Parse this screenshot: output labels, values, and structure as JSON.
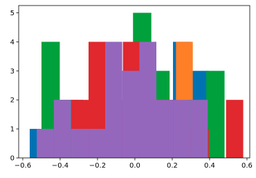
{
  "chart_data": {
    "type": "histogram",
    "xlim": [
      -0.622,
      0.615
    ],
    "xticks": [
      {
        "value": -0.6,
        "label": "−0.6"
      },
      {
        "value": -0.4,
        "label": "−0.4"
      },
      {
        "value": -0.2,
        "label": "−0.2"
      },
      {
        "value": 0,
        "label": "0.0"
      },
      0.2,
      0.4,
      0.6
    ],
    "ylim": [
      0,
      5.25
    ],
    "yticks": [
      0,
      1,
      2,
      3,
      4,
      5
    ],
    "series": [
      {
        "color": "#0072b2",
        "bins": [
          -0.563,
          -0.467,
          -0.371,
          -0.276,
          -0.18,
          -0.084,
          0.012,
          0.108,
          0.204,
          0.299,
          0.395
        ],
        "values": [
          1,
          1,
          2,
          1,
          3,
          2,
          2,
          1,
          4,
          3
        ]
      },
      {
        "color": "#ff7f27",
        "bins": [
          -0.5,
          -0.41,
          -0.32,
          -0.23,
          -0.14,
          -0.05,
          0.04,
          0.13,
          0.22,
          0.31,
          0.4
        ],
        "values": [
          1,
          2,
          1,
          3,
          2,
          3,
          2,
          1,
          4,
          1
        ]
      },
      {
        "color": "#00a03c",
        "bins": [
          -0.5,
          -0.402,
          -0.304,
          -0.206,
          -0.108,
          -0.01,
          0.088,
          0.186,
          0.284,
          0.382,
          0.48
        ],
        "values": [
          4,
          2,
          1,
          1,
          2,
          5,
          3,
          1,
          2,
          3
        ]
      },
      {
        "color": "#e0282e",
        "bins": [
          -0.34,
          -0.248,
          -0.156,
          -0.064,
          0.028,
          0.12,
          0.212,
          0.304,
          0.396,
          0.488,
          0.58
        ],
        "values": [
          2,
          4,
          2,
          4,
          2,
          2,
          1,
          1,
          0,
          2
        ]
      },
      {
        "color": "#9467bd",
        "bins": [
          -0.525,
          -0.434,
          -0.342,
          -0.25,
          -0.159,
          -0.068,
          0.024,
          0.115,
          0.207,
          0.298,
          0.39
        ],
        "values": [
          1,
          2,
          1,
          1,
          4,
          3,
          4,
          2,
          2,
          2
        ]
      }
    ]
  }
}
